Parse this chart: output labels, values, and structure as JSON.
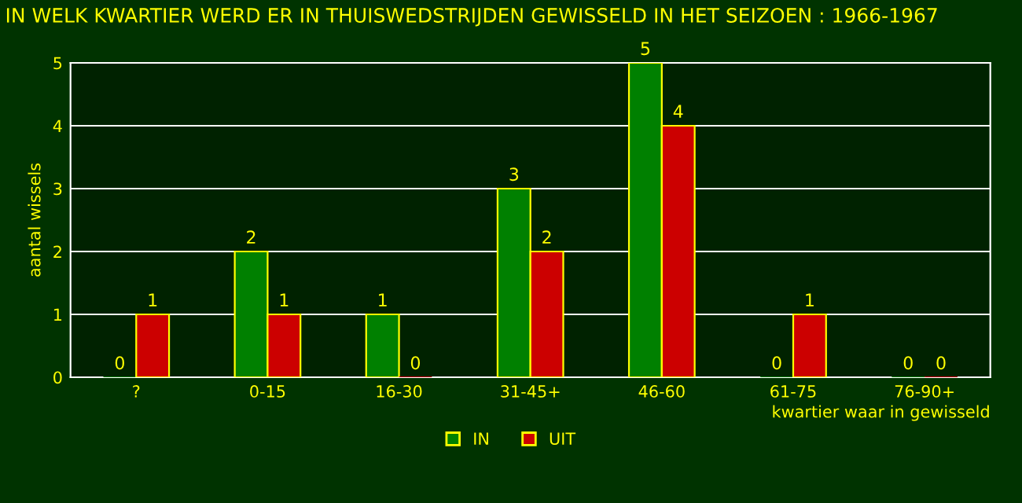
{
  "chart_data": {
    "type": "bar",
    "title": "IN WELK KWARTIER WERD ER IN THUISWEDSTRIJDEN GEWISSELD IN HET SEIZOEN : 1966-1967",
    "xlabel": "kwartier waar in gewisseld",
    "ylabel": "aantal wissels",
    "categories": [
      "?",
      "0-15",
      "16-30",
      "31-45+",
      "46-60",
      "61-75",
      "76-90+"
    ],
    "series": [
      {
        "name": "IN",
        "color": "#008000",
        "values": [
          0,
          2,
          1,
          3,
          5,
          0,
          0
        ]
      },
      {
        "name": "UIT",
        "color": "#cc0000",
        "values": [
          1,
          1,
          0,
          2,
          4,
          1,
          0
        ]
      }
    ],
    "ylim": [
      0,
      5
    ],
    "yticks": [
      0,
      1,
      2,
      3,
      4,
      5
    ],
    "grid": "y",
    "legend": "bottom",
    "data_labels": true
  }
}
